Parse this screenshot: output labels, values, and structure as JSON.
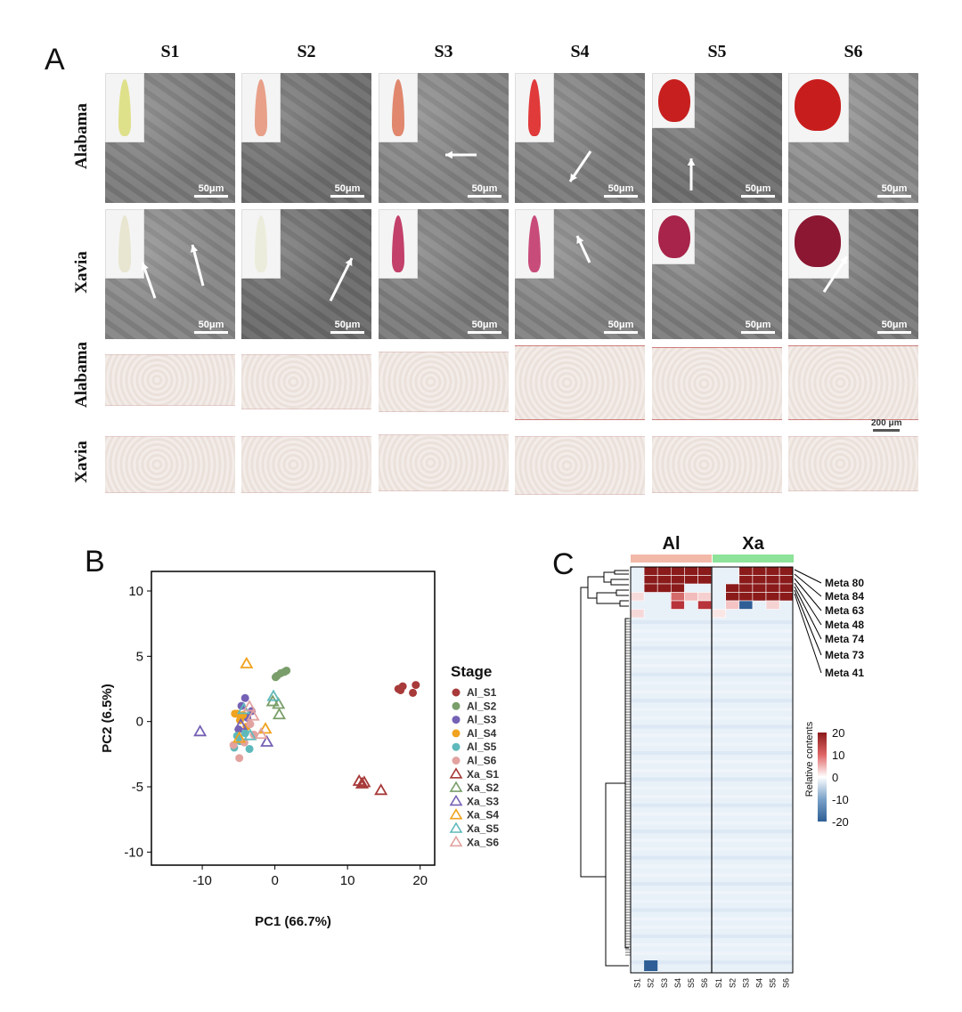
{
  "panelA": {
    "letter": "A",
    "stages": [
      "S1",
      "S2",
      "S3",
      "S4",
      "S5",
      "S6"
    ],
    "rows": [
      "Alabama",
      "Xavia",
      "Alabama",
      "Xavia"
    ],
    "sem_scale": "50μm",
    "section_scale": "200 μm"
  },
  "panelB": {
    "letter": "B",
    "legend_title": "Stage"
  },
  "panelC": {
    "letter": "C",
    "group_labels": [
      "Al",
      "Xa"
    ],
    "row_labels": [
      "Meta 80",
      "Meta 84",
      "Meta 63",
      "Meta 48",
      "Meta 74",
      "Meta 73",
      "Meta 41"
    ],
    "column_labels": [
      "S1",
      "S2",
      "S3",
      "S4",
      "S5",
      "S6",
      "S1",
      "S2",
      "S3",
      "S4",
      "S5",
      "S6"
    ],
    "colorbar_title": "Relative contents",
    "colorbar_ticks": [
      "20",
      "10",
      "0",
      "-10",
      "-20"
    ],
    "colors": {
      "high": "#8b1a1a",
      "low": "#2e5e95",
      "al_band": "#f2b9a9",
      "xa_band": "#8de39a"
    }
  },
  "chart_data": {
    "type": "scatter",
    "xlabel": "PC1 (66.7%)",
    "ylabel": "PC2 (6.5%)",
    "xlim": [
      -17,
      22
    ],
    "ylim": [
      -11,
      11.5
    ],
    "xticks": [
      -10,
      0,
      10,
      20
    ],
    "yticks": [
      -10,
      -5,
      0,
      5,
      10
    ],
    "legend_placement": "right",
    "series": [
      {
        "name": "Al_S1",
        "marker": "circle",
        "color": "#a83a3a",
        "points": [
          [
            17,
            2.5
          ],
          [
            17.6,
            2.7
          ],
          [
            19.4,
            2.8
          ],
          [
            19,
            2.2
          ],
          [
            17.3,
            2.4
          ]
        ]
      },
      {
        "name": "Al_S2",
        "marker": "circle",
        "color": "#7a9e6a",
        "points": [
          [
            0.3,
            3.5
          ],
          [
            0.8,
            3.7
          ],
          [
            1.3,
            3.8
          ],
          [
            1.6,
            3.9
          ],
          [
            0.1,
            3.4
          ]
        ]
      },
      {
        "name": "Al_S3",
        "marker": "circle",
        "color": "#7561b5",
        "points": [
          [
            -4.1,
            1.8
          ],
          [
            -4.6,
            1.2
          ],
          [
            -3.2,
            0.8
          ],
          [
            -5,
            -0.6
          ],
          [
            -3.8,
            0.3
          ]
        ]
      },
      {
        "name": "Al_S4",
        "marker": "circle",
        "color": "#f0a31e",
        "points": [
          [
            -5.2,
            0.6
          ],
          [
            -4.4,
            0.5
          ],
          [
            -4.8,
            0.1
          ],
          [
            -3.9,
            -0.4
          ],
          [
            -5.5,
            0.6
          ]
        ]
      },
      {
        "name": "Al_S5",
        "marker": "circle",
        "color": "#5fb9bb",
        "points": [
          [
            -5.6,
            -2
          ],
          [
            -4.8,
            -1.5
          ],
          [
            -3.5,
            -2.1
          ],
          [
            -5.2,
            -1.1
          ],
          [
            -4.1,
            -0.9
          ]
        ]
      },
      {
        "name": "Al_S6",
        "marker": "circle",
        "color": "#e2a3a0",
        "points": [
          [
            -4.9,
            -2.8
          ],
          [
            -5.7,
            -1.8
          ],
          [
            -2.9,
            -1
          ],
          [
            -4.2,
            -1.6
          ],
          [
            -3.4,
            -0.2
          ]
        ]
      },
      {
        "name": "Xa_S1",
        "marker": "triangle",
        "color": "#a83a3a",
        "points": [
          [
            11.6,
            -4.6
          ],
          [
            12,
            -4.8
          ],
          [
            12.3,
            -4.7
          ],
          [
            14.6,
            -5.3
          ]
        ]
      },
      {
        "name": "Xa_S2",
        "marker": "triangle",
        "color": "#7a9e6a",
        "points": [
          [
            0.5,
            1.3
          ],
          [
            0.6,
            0.5
          ],
          [
            -0.3,
            1.5
          ]
        ]
      },
      {
        "name": "Xa_S3",
        "marker": "triangle",
        "color": "#7561b5",
        "points": [
          [
            -10.3,
            -0.8
          ],
          [
            -1.1,
            -1.6
          ],
          [
            -4.7,
            -0.3
          ]
        ]
      },
      {
        "name": "Xa_S4",
        "marker": "triangle",
        "color": "#f0a31e",
        "points": [
          [
            -3.9,
            4.4
          ],
          [
            -1.3,
            -0.6
          ],
          [
            -4.9,
            -1.3
          ]
        ]
      },
      {
        "name": "Xa_S5",
        "marker": "triangle",
        "color": "#5fb9bb",
        "points": [
          [
            -0.2,
            1.9
          ],
          [
            -3.4,
            -1.1
          ],
          [
            -4.3,
            0.9
          ]
        ]
      },
      {
        "name": "Xa_S6",
        "marker": "triangle",
        "color": "#e2a3a0",
        "points": [
          [
            -3,
            0.4
          ],
          [
            -1.9,
            -1
          ],
          [
            -3.5,
            1.1
          ]
        ]
      }
    ]
  }
}
